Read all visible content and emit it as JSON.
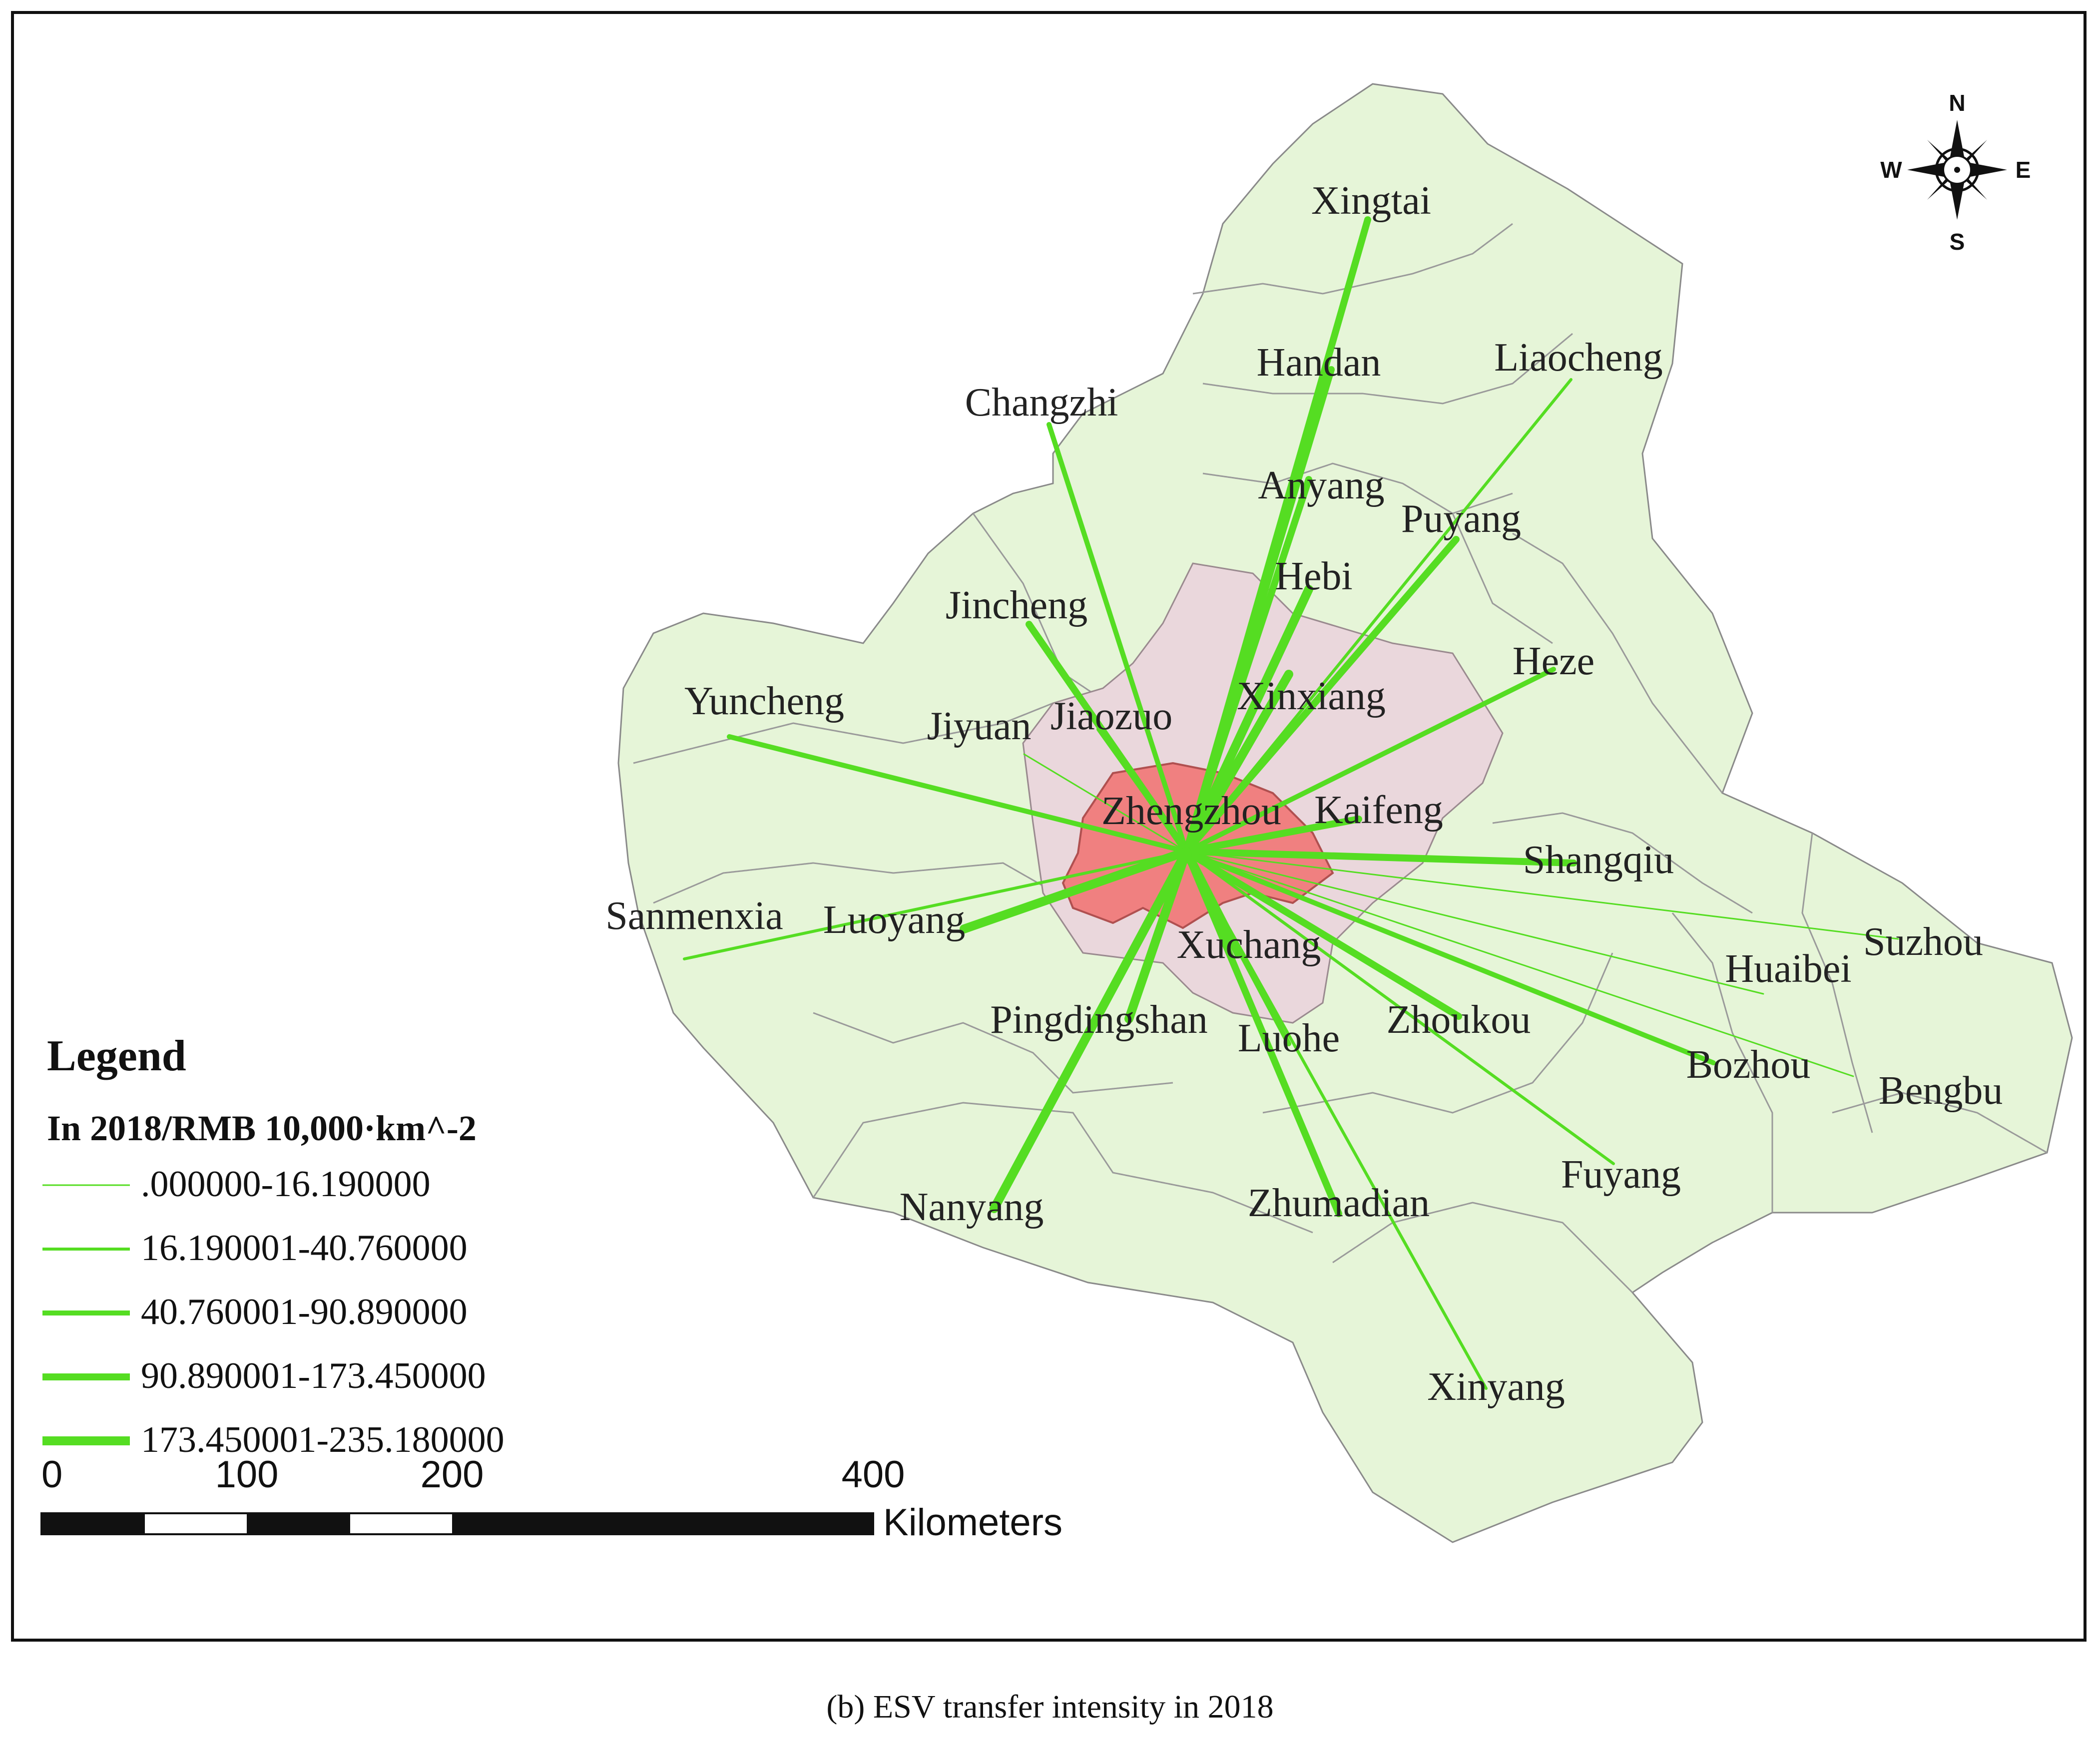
{
  "map": {
    "origin_city": "Zhengzhou",
    "colors": {
      "region_fill": "#e6f5d8",
      "region_stroke": "#8a8a8a",
      "core_fill": "#ead7dc",
      "origin_fill": "#f08080",
      "flow_line": "#55dd22"
    },
    "cities": [
      {
        "name": "Xingtai"
      },
      {
        "name": "Handan"
      },
      {
        "name": "Liaocheng"
      },
      {
        "name": "Changzhi"
      },
      {
        "name": "Anyang"
      },
      {
        "name": "Puyang"
      },
      {
        "name": "Hebi"
      },
      {
        "name": "Jincheng"
      },
      {
        "name": "Heze"
      },
      {
        "name": "Xinxiang"
      },
      {
        "name": "Yuncheng"
      },
      {
        "name": "Jiaozuo"
      },
      {
        "name": "Jiyuan"
      },
      {
        "name": "Zhengzhou"
      },
      {
        "name": "Kaifeng"
      },
      {
        "name": "Shangqiu"
      },
      {
        "name": "Sanmenxia"
      },
      {
        "name": "Luoyang"
      },
      {
        "name": "Suzhou"
      },
      {
        "name": "Xuchang"
      },
      {
        "name": "Huaibei"
      },
      {
        "name": "Pingdingshan"
      },
      {
        "name": "Zhoukou"
      },
      {
        "name": "Luohe"
      },
      {
        "name": "Bozhou"
      },
      {
        "name": "Bengbu"
      },
      {
        "name": "Nanyang"
      },
      {
        "name": "Fuyang"
      },
      {
        "name": "Zhumadian"
      },
      {
        "name": "Xinyang"
      }
    ],
    "flows": [
      {
        "to": "Xingtai",
        "class": 4
      },
      {
        "to": "Handan",
        "class": 4
      },
      {
        "to": "Liaocheng",
        "class": 2
      },
      {
        "to": "Changzhi",
        "class": 3
      },
      {
        "to": "Anyang",
        "class": 4
      },
      {
        "to": "Puyang",
        "class": 4
      },
      {
        "to": "Hebi",
        "class": 5
      },
      {
        "to": "Jincheng",
        "class": 4
      },
      {
        "to": "Heze",
        "class": 3
      },
      {
        "to": "Xinxiang",
        "class": 5
      },
      {
        "to": "Yuncheng",
        "class": 3
      },
      {
        "to": "Jiaozuo",
        "class": 3
      },
      {
        "to": "Jiyuan",
        "class": 1
      },
      {
        "to": "Kaifeng",
        "class": 4
      },
      {
        "to": "Shangqiu",
        "class": 4
      },
      {
        "to": "Sanmenxia",
        "class": 2
      },
      {
        "to": "Luoyang",
        "class": 5
      },
      {
        "to": "Suzhou",
        "class": 1
      },
      {
        "to": "Xuchang",
        "class": 5
      },
      {
        "to": "Huaibei",
        "class": 1
      },
      {
        "to": "Pingdingshan",
        "class": 5
      },
      {
        "to": "Zhoukou",
        "class": 4
      },
      {
        "to": "Luohe",
        "class": 3
      },
      {
        "to": "Bozhou",
        "class": 3
      },
      {
        "to": "Bengbu",
        "class": 1
      },
      {
        "to": "Nanyang",
        "class": 5
      },
      {
        "to": "Fuyang",
        "class": 2
      },
      {
        "to": "Zhumadian",
        "class": 4
      },
      {
        "to": "Xinyang",
        "class": 2
      }
    ]
  },
  "legend": {
    "title": "Legend",
    "subtitle": "In 2018/RMB 10,000·km^-2",
    "items": [
      {
        "label": ".000000-16.190000",
        "class": 1
      },
      {
        "label": "16.190001-40.760000",
        "class": 2
      },
      {
        "label": "40.760001-90.890000",
        "class": 3
      },
      {
        "label": "90.890001-173.450000",
        "class": 4
      },
      {
        "label": "173.450001-235.180000",
        "class": 5
      }
    ]
  },
  "compass": {
    "n": "N",
    "s": "S",
    "e": "E",
    "w": "W"
  },
  "scale": {
    "ticks": [
      "0",
      "100",
      "200",
      "400"
    ],
    "unit": "Kilometers"
  },
  "caption": "(b) ESV transfer intensity in 2018"
}
